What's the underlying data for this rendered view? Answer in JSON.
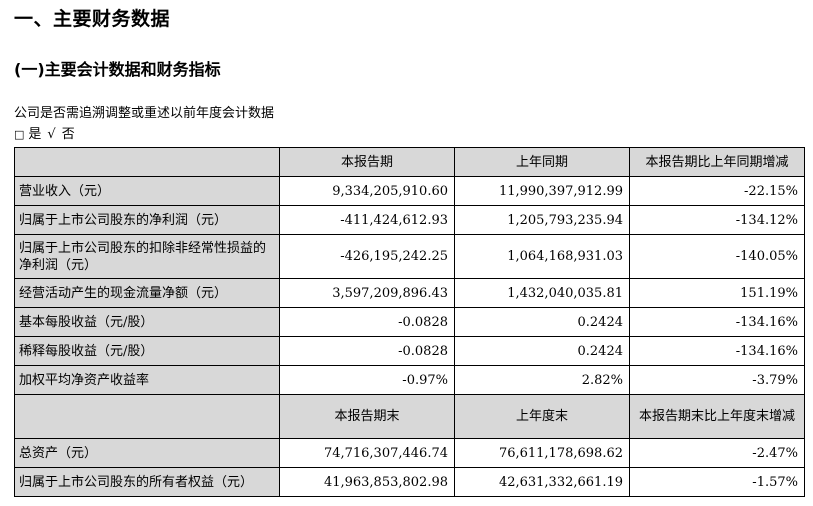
{
  "title": "一、主要财务数据",
  "subtitle": "(一)主要会计数据和财务指标",
  "question": "公司是否需追溯调整或重述以前年度会计数据",
  "options": {
    "box": "□",
    "yes": "是",
    "check": "√",
    "no": "否"
  },
  "table": {
    "header1": [
      "",
      "本报告期",
      "上年同期",
      "本报告期比上年同期增减"
    ],
    "rows1": [
      [
        "营业收入（元）",
        "9,334,205,910.60",
        "11,990,397,912.99",
        "-22.15%"
      ],
      [
        "归属于上市公司股东的净利润（元）",
        "-411,424,612.93",
        "1,205,793,235.94",
        "-134.12%"
      ],
      [
        "归属于上市公司股东的扣除非经常性损益的净利润（元）",
        "-426,195,242.25",
        "1,064,168,931.03",
        "-140.05%"
      ],
      [
        "经营活动产生的现金流量净额（元）",
        "3,597,209,896.43",
        "1,432,040,035.81",
        "151.19%"
      ],
      [
        "基本每股收益（元/股）",
        "-0.0828",
        "0.2424",
        "-134.16%"
      ],
      [
        "稀释每股收益（元/股）",
        "-0.0828",
        "0.2424",
        "-134.16%"
      ],
      [
        "加权平均净资产收益率",
        "-0.97%",
        "2.82%",
        "-3.79%"
      ]
    ],
    "header2": [
      "",
      "本报告期末",
      "上年度末",
      "本报告期末比上年度末增减"
    ],
    "rows2": [
      [
        "总资产（元）",
        "74,716,307,446.74",
        "76,611,178,698.62",
        "-2.47%"
      ],
      [
        "归属于上市公司股东的所有者权益（元）",
        "41,963,853,802.98",
        "42,631,332,661.19",
        "-1.57%"
      ]
    ]
  }
}
